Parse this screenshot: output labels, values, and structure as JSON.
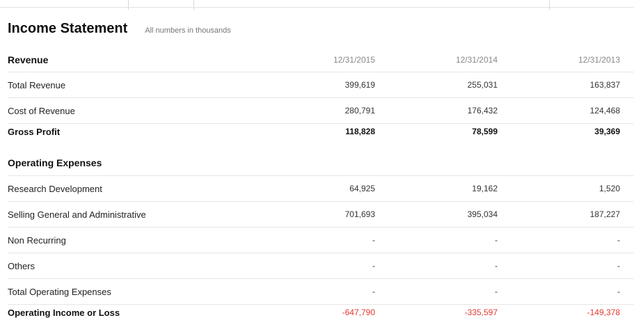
{
  "statement": {
    "title": "Income Statement",
    "subtitle": "All numbers in thousands"
  },
  "columns": [
    "12/31/2015",
    "12/31/2014",
    "12/31/2013"
  ],
  "sections": {
    "revenue": "Revenue",
    "operating_expenses": "Operating Expenses"
  },
  "rows": {
    "total_revenue": {
      "label": "Total Revenue",
      "values": [
        "399,619",
        "255,031",
        "163,837"
      ]
    },
    "cost_of_revenue": {
      "label": "Cost of Revenue",
      "values": [
        "280,791",
        "176,432",
        "124,468"
      ]
    },
    "gross_profit": {
      "label": "Gross Profit",
      "values": [
        "118,828",
        "78,599",
        "39,369"
      ]
    },
    "research_development": {
      "label": "Research Development",
      "values": [
        "64,925",
        "19,162",
        "1,520"
      ]
    },
    "sga": {
      "label": "Selling General and Administrative",
      "values": [
        "701,693",
        "395,034",
        "187,227"
      ]
    },
    "non_recurring": {
      "label": "Non Recurring",
      "values": [
        "-",
        "-",
        "-"
      ]
    },
    "others": {
      "label": "Others",
      "values": [
        "-",
        "-",
        "-"
      ]
    },
    "total_operating_expenses": {
      "label": "Total Operating Expenses",
      "values": [
        "-",
        "-",
        "-"
      ]
    },
    "operating_income": {
      "label": "Operating Income or Loss",
      "values": [
        "-647,790",
        "-335,597",
        "-149,378"
      ]
    }
  },
  "colors": {
    "negative": "#e53935",
    "border": "#e6e6e6",
    "muted": "#888888"
  }
}
